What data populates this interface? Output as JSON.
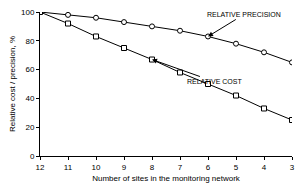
{
  "chart_data": {
    "type": "line",
    "x_label": "Number of sites in the monitoring network",
    "y_label": "Relative cost / precision, %",
    "x": [
      12,
      11,
      10,
      9,
      8,
      7,
      6,
      5,
      4,
      3
    ],
    "series": [
      {
        "name": "RELATIVE PRECISION",
        "color": "#000000",
        "marker": "circle",
        "values": [
          100,
          98,
          96,
          93,
          90,
          87,
          83,
          78,
          72,
          65
        ]
      },
      {
        "name": "RELATIVE COST",
        "color": "#000000",
        "marker": "square",
        "values": [
          100,
          92,
          83,
          75,
          67,
          58,
          50,
          42,
          33,
          25
        ]
      }
    ],
    "annotations": [
      {
        "text": "RELATIVE PRECISION",
        "x": 6,
        "y": 83
      },
      {
        "text": "RELATIVE COST",
        "x": 8,
        "y": 67
      }
    ],
    "xlim": [
      12,
      3
    ],
    "xticks": [
      12,
      11,
      10,
      9,
      8,
      7,
      6,
      5,
      4,
      3
    ],
    "ylim": [
      0,
      100
    ],
    "yticks": [
      0,
      20,
      40,
      60,
      80,
      100
    ],
    "grid": false
  }
}
